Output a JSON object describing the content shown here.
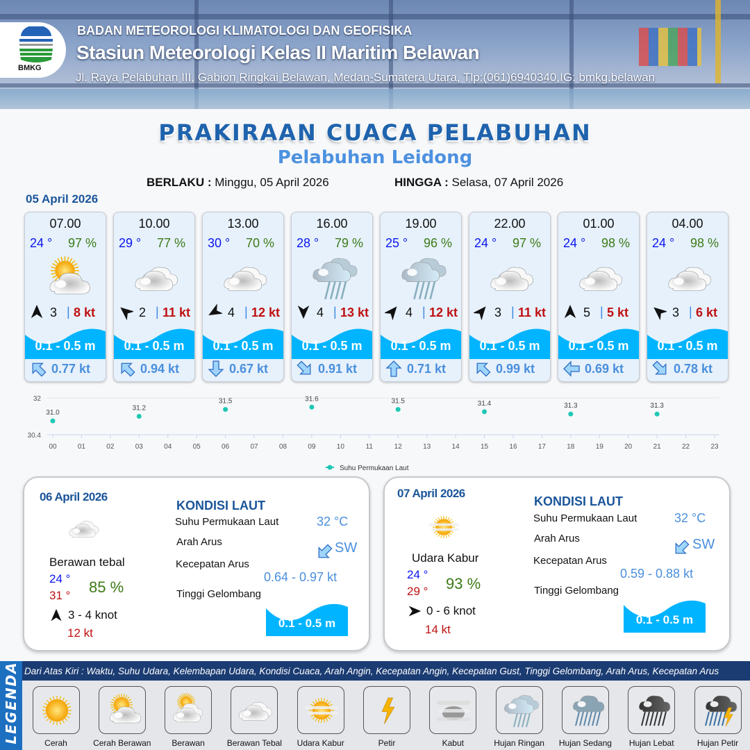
{
  "header": {
    "logo_text": "BMKG",
    "agency": "BADAN METEOROLOGI KLIMATOLOGI DAN GEOFISIKA",
    "station": "Stasiun Meteorologi Kelas II Maritim Belawan",
    "address": "Jl. Raya Pelabuhan III, Gabion Ringkai Belawan, Medan-Sumatera Utara, Tlp:(061)6940340,IG: bmkg.belawan"
  },
  "title": "PRAKIRAAN CUACA PELABUHAN",
  "subtitle": "Pelabuhan Leidong",
  "validity": {
    "from_label": "BERLAKU :",
    "from": "Minggu, 05 April 2026",
    "to_label": "HINGGA :",
    "to": "Selasa, 07 April 2026"
  },
  "day1": {
    "date": "05 April 2026",
    "cards": [
      {
        "time": "07.00",
        "temp": "24 °",
        "hum": "97 %",
        "icon": "cerah-berawan",
        "wind_dir_deg": 0,
        "wind": "3",
        "gust": "8 kt",
        "wave": "0.1 - 0.5 m",
        "current_dir_deg": -45,
        "current": "0.77 kt"
      },
      {
        "time": "10.00",
        "temp": "29 °",
        "hum": "77 %",
        "icon": "berawan-tebal",
        "wind_dir_deg": -50,
        "wind": "2",
        "gust": "11 kt",
        "wave": "0.1 - 0.5 m",
        "current_dir_deg": -45,
        "current": "0.94 kt"
      },
      {
        "time": "13.00",
        "temp": "30 °",
        "hum": "70 %",
        "icon": "berawan-tebal",
        "wind_dir_deg": -120,
        "wind": "4",
        "gust": "12 kt",
        "wave": "0.1 - 0.5 m",
        "current_dir_deg": 180,
        "current": "0.67 kt"
      },
      {
        "time": "16.00",
        "temp": "28 °",
        "hum": "79 %",
        "icon": "hujan-ringan",
        "wind_dir_deg": 180,
        "wind": "4",
        "gust": "13 kt",
        "wave": "0.1 - 0.5 m",
        "current_dir_deg": 135,
        "current": "0.91 kt"
      },
      {
        "time": "19.00",
        "temp": "25 °",
        "hum": "96 %",
        "icon": "hujan-ringan",
        "wind_dir_deg": 40,
        "wind": "4",
        "gust": "12 kt",
        "wave": "0.1 - 0.5 m",
        "current_dir_deg": 0,
        "current": "0.71 kt"
      },
      {
        "time": "22.00",
        "temp": "24 °",
        "hum": "97 %",
        "icon": "berawan-tebal",
        "wind_dir_deg": 40,
        "wind": "3",
        "gust": "11 kt",
        "wave": "0.1 - 0.5 m",
        "current_dir_deg": -45,
        "current": "0.99 kt"
      },
      {
        "time": "01.00",
        "temp": "24 °",
        "hum": "98 %",
        "icon": "berawan-tebal",
        "wind_dir_deg": 0,
        "wind": "5",
        "gust": "5 kt",
        "wave": "0.1 - 0.5 m",
        "current_dir_deg": -90,
        "current": "0.69 kt"
      },
      {
        "time": "04.00",
        "temp": "24 °",
        "hum": "98 %",
        "icon": "berawan-tebal",
        "wind_dir_deg": -50,
        "wind": "3",
        "gust": "6 kt",
        "wave": "0.1 - 0.5 m",
        "current_dir_deg": 135,
        "current": "0.78 kt"
      }
    ]
  },
  "chart_data": {
    "type": "scatter",
    "x_ticks": [
      "00",
      "01",
      "02",
      "03",
      "04",
      "05",
      "06",
      "07",
      "08",
      "09",
      "10",
      "11",
      "12",
      "13",
      "14",
      "15",
      "16",
      "17",
      "18",
      "19",
      "20",
      "21",
      "22",
      "23"
    ],
    "y_ticks": [
      "32",
      "30.4"
    ],
    "ylim": [
      30.4,
      32
    ],
    "grid": true,
    "legend": "bottom",
    "series": [
      {
        "name": "Suhu Permukaan Laut",
        "color": "#1ec8b4",
        "points": [
          {
            "x": 0,
            "y": 31.0
          },
          {
            "x": 3,
            "y": 31.2
          },
          {
            "x": 6,
            "y": 31.5
          },
          {
            "x": 9,
            "y": 31.6
          },
          {
            "x": 12,
            "y": 31.5
          },
          {
            "x": 15,
            "y": 31.4
          },
          {
            "x": 18,
            "y": 31.3
          },
          {
            "x": 21,
            "y": 31.3
          }
        ],
        "labels": [
          "31.0",
          "31.2",
          "31.5",
          "31.6",
          "31.5",
          "31.4",
          "31.3",
          "31.3"
        ]
      }
    ]
  },
  "panels": [
    {
      "date": "06 April 2026",
      "icon": "berawan-tebal",
      "condition": "Berawan tebal",
      "tmin": "24 °",
      "tmax": "31 °",
      "hum": "85 %",
      "wind_dir_deg": 0,
      "wind": "3  - 4 knot",
      "gust": "12 kt",
      "kondisi_title": "KONDISI LAUT",
      "sst_label": "Suhu Permukaan Laut",
      "sst": "32 °C",
      "dir_label": "Arah Arus",
      "dir": "SW",
      "speed_label": "Kecepatan Arus",
      "speed": "0.64 - 0.97 kt",
      "wave_label": "Tinggi Gelombang",
      "wave": "0.1 - 0.5 m"
    },
    {
      "date": "07 April 2026",
      "icon": "udara-kabur",
      "condition": "Udara Kabur",
      "tmin": "24 °",
      "tmax": "29 °",
      "hum": "93 %",
      "wind_dir_deg": 90,
      "wind": "0  - 6 knot",
      "gust": "14 kt",
      "kondisi_title": "KONDISI LAUT",
      "sst_label": "Suhu Permukaan Laut",
      "sst": "32 °C",
      "dir_label": "Arah Arus",
      "dir": "SW",
      "speed_label": "Kecepatan Arus",
      "speed": "0.59  - 0.88 kt",
      "wave_label": "Tinggi Gelombang",
      "wave": "0.1 - 0.5 m"
    }
  ],
  "legend": {
    "side_label": "LEGENDA",
    "description": "Dari Atas Kiri : Waktu, Suhu Udara, Kelembapan Udara, Kondisi Cuaca, Arah Angin, Kecepatan Angin, Kecepatan Gust, Tinggi Gelombang, Arah Arus, Kecepatan Arus",
    "items": [
      {
        "label": "Cerah",
        "icon": "cerah"
      },
      {
        "label": "Cerah Berawan",
        "icon": "cerah-berawan"
      },
      {
        "label": "Berawan",
        "icon": "berawan"
      },
      {
        "label": "Berawan Tebal",
        "icon": "berawan-tebal"
      },
      {
        "label": "Udara Kabur",
        "icon": "udara-kabur"
      },
      {
        "label": "Petir",
        "icon": "petir"
      },
      {
        "label": "Kabut",
        "icon": "kabut"
      },
      {
        "label": "Hujan Ringan",
        "icon": "hujan-ringan"
      },
      {
        "label": "Hujan Sedang",
        "icon": "hujan-sedang"
      },
      {
        "label": "Hujan Lebat",
        "icon": "hujan-lebat"
      },
      {
        "label": "Hujan Petir",
        "icon": "hujan-petir"
      }
    ]
  },
  "colors": {
    "temp": "#0a14f0",
    "humidity": "#3c7a16",
    "gust": "#c01010",
    "wave": "#00b4ff",
    "current": "#4a8fdc",
    "title": "#1f63ad"
  }
}
